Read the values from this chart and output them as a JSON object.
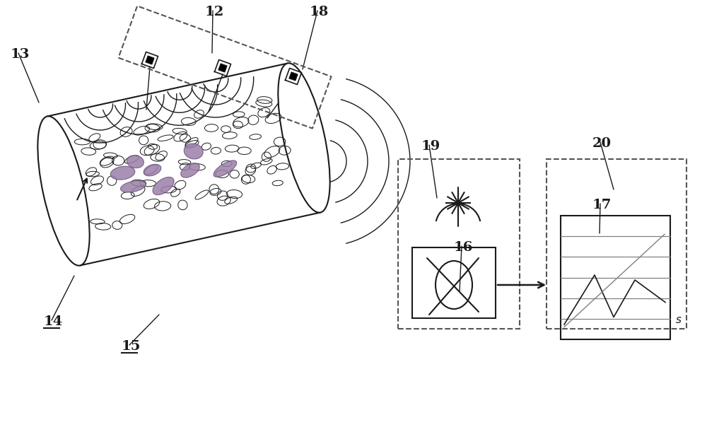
{
  "bg_color": "#ffffff",
  "line_color": "#1a1a1a",
  "gray_color": "#808080",
  "light_gray": "#b0b0b0",
  "dashed_color": "#555555",
  "purple_color": "#9b7fa8",
  "purple_edge": "#6a5080"
}
